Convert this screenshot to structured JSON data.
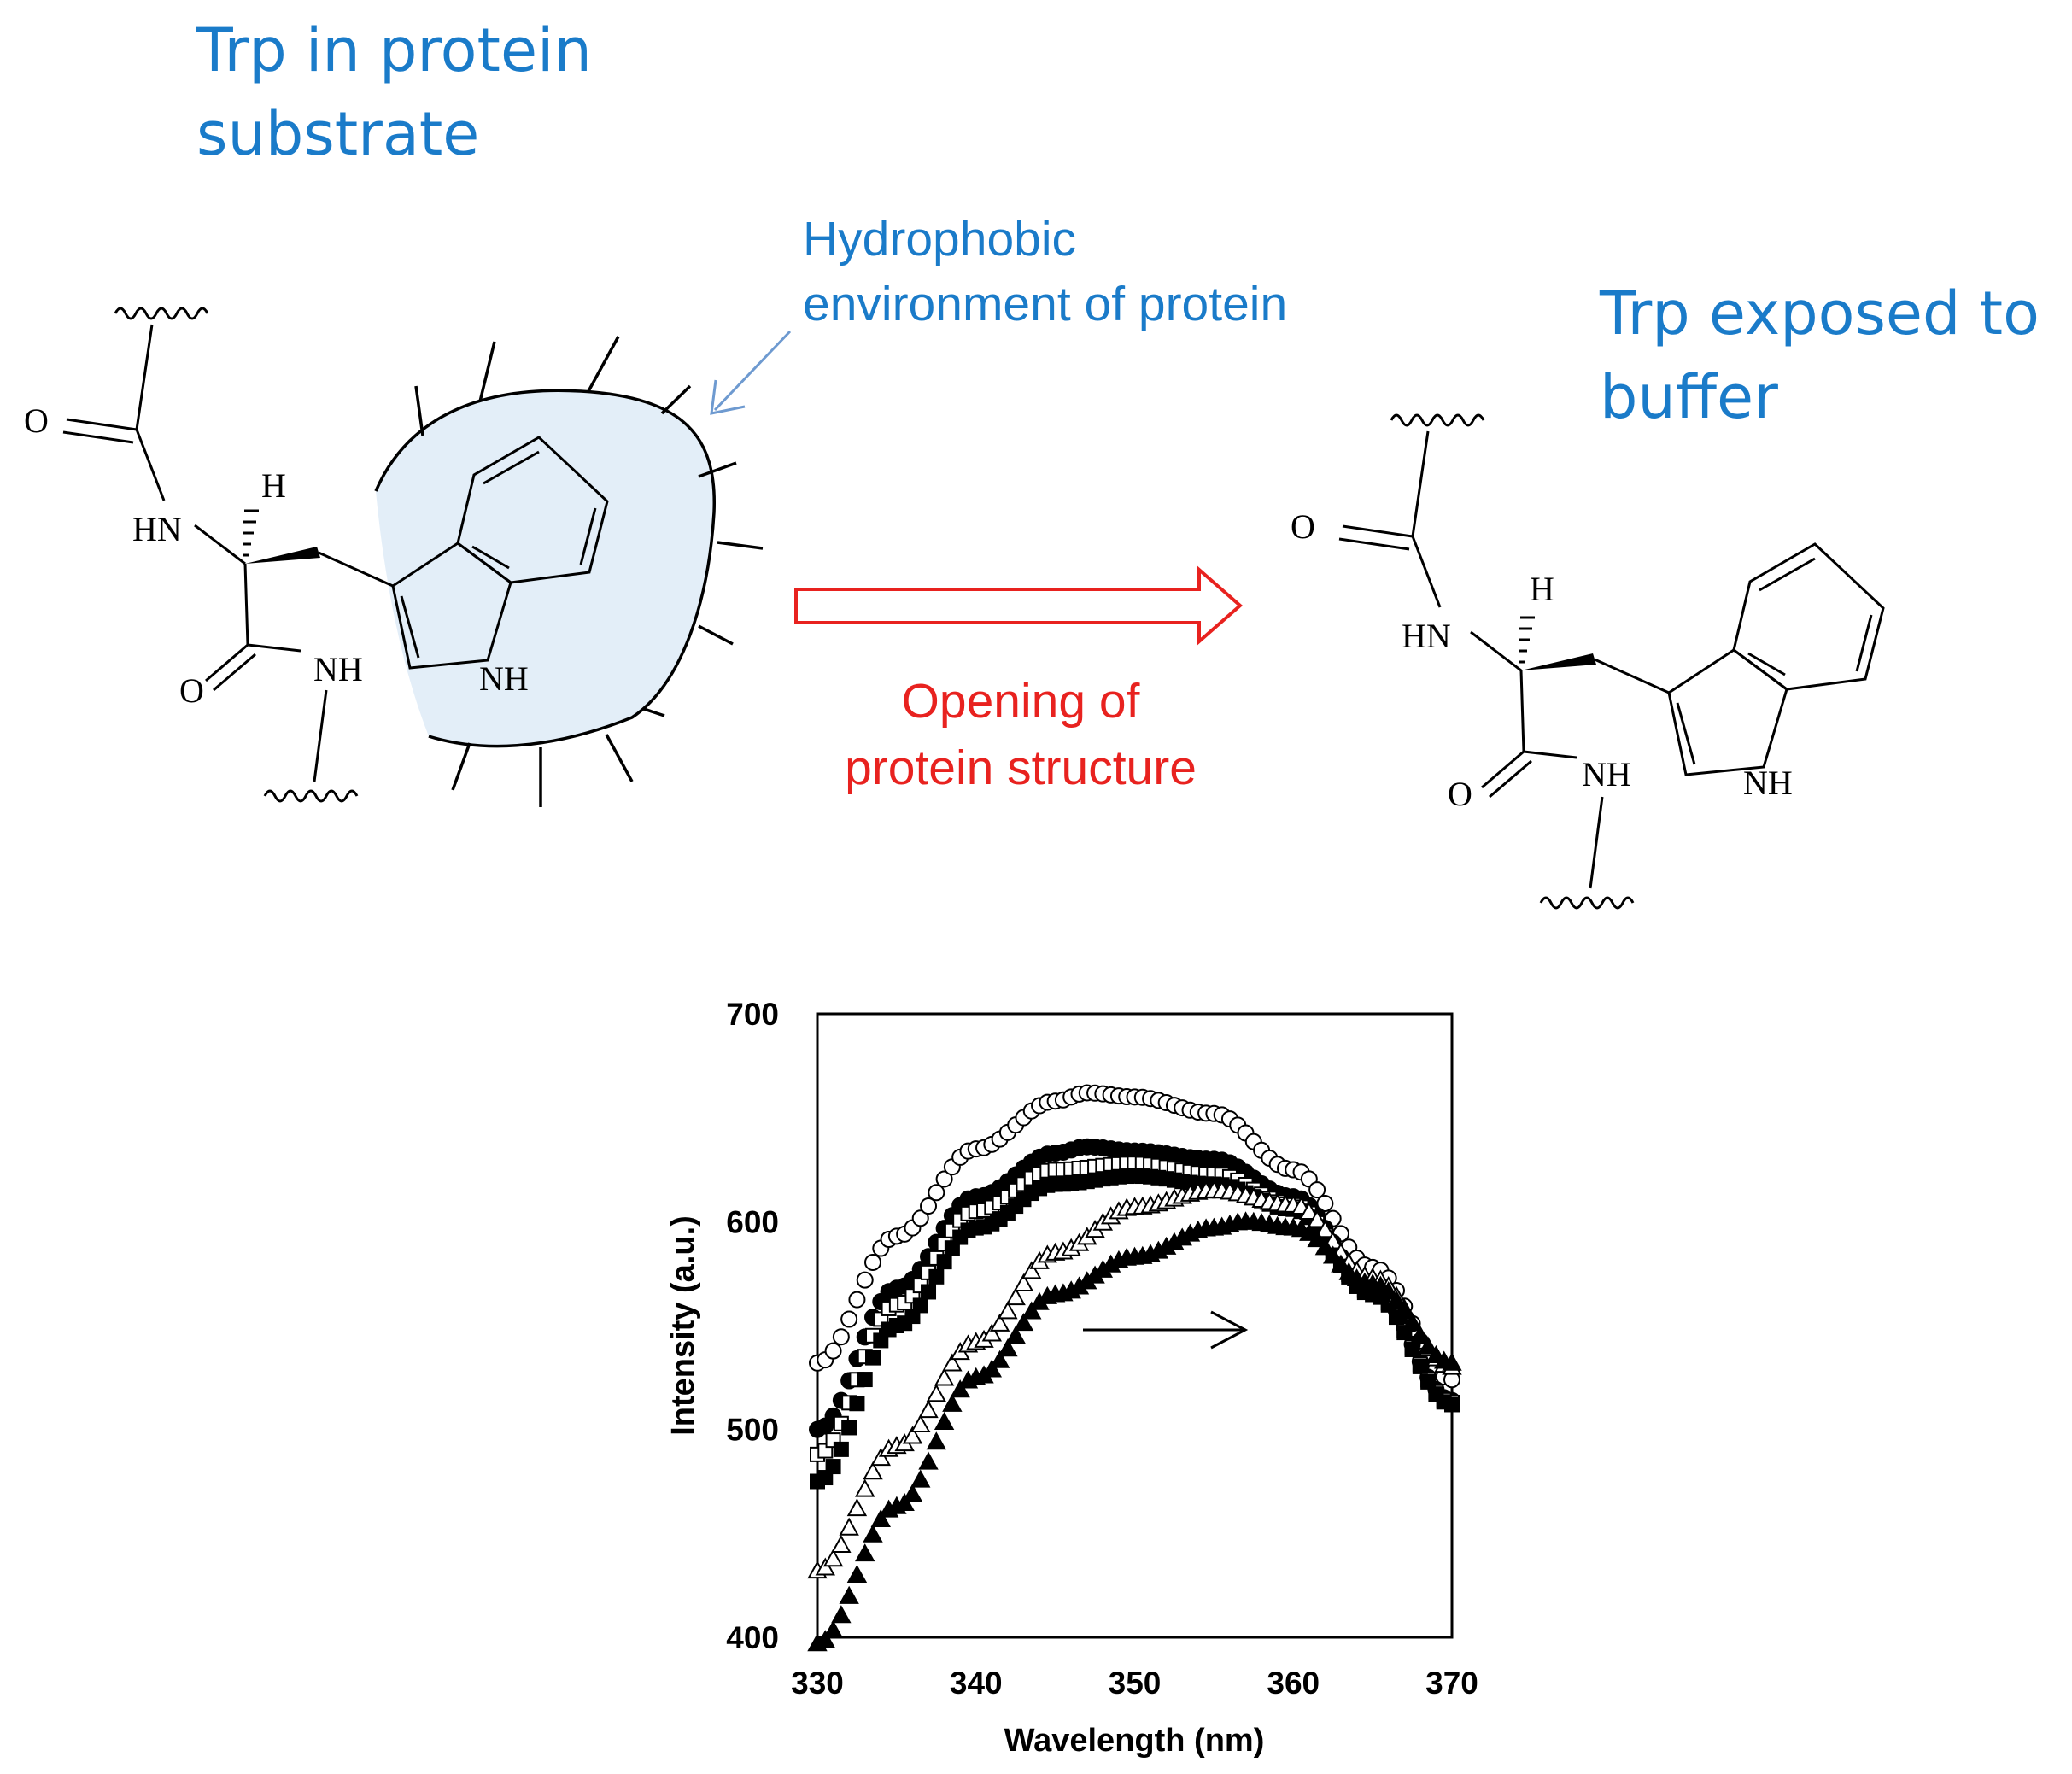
{
  "labels": {
    "trp_in_protein_line1": "Trp in protein",
    "trp_in_protein_line2": "substrate",
    "hydrophobic_line1": "Hydrophobic",
    "hydrophobic_line2": "environment of protein",
    "trp_exposed_line1": "Trp exposed to",
    "trp_exposed_line2": "buffer",
    "opening_line1": "Opening of",
    "opening_line2": "protein structure"
  },
  "atoms": {
    "O": "O",
    "HN": "HN",
    "H": "H",
    "NH": "NH"
  },
  "colors": {
    "blue_text": "#1a7bc9",
    "red": "#e8221f",
    "hydrophobic_fill": "#e3eef8",
    "pointer_arrow": "#6e9ad0"
  },
  "chart_data": {
    "type": "scatter",
    "xlabel": "Wavelength (nm)",
    "ylabel": "Intensity (a.u.)",
    "xlim": [
      330,
      370
    ],
    "ylim": [
      400,
      700
    ],
    "xticks": [
      "330",
      "340",
      "350",
      "360",
      "370"
    ],
    "yticks": [
      "400",
      "500",
      "600",
      "700"
    ],
    "grid": false,
    "legend": "none",
    "series": [
      {
        "marker": "open-circle",
        "x": [
          330,
          335,
          340,
          345,
          347,
          350,
          355,
          360,
          365,
          370
        ],
        "values": [
          532,
          593,
          635,
          658,
          662,
          660,
          652,
          625,
          578,
          524
        ]
      },
      {
        "marker": "filled-circle",
        "x": [
          330,
          335,
          340,
          345,
          347,
          350,
          355,
          360,
          365,
          370
        ],
        "values": [
          500,
          568,
          612,
          633,
          636,
          634,
          630,
          612,
          568,
          514
        ]
      },
      {
        "marker": "open-square",
        "x": [
          330,
          335,
          340,
          345,
          350,
          355,
          360,
          365,
          370
        ],
        "values": [
          488,
          560,
          605,
          625,
          628,
          623,
          608,
          566,
          513
        ]
      },
      {
        "marker": "filled-square",
        "x": [
          330,
          335,
          340,
          345,
          350,
          355,
          360,
          365,
          370
        ],
        "values": [
          475,
          550,
          597,
          618,
          622,
          618,
          606,
          565,
          512
        ]
      },
      {
        "marker": "open-triangle",
        "x": [
          330,
          335,
          340,
          345,
          350,
          355,
          360,
          365,
          370
        ],
        "values": [
          432,
          492,
          542,
          585,
          607,
          615,
          608,
          573,
          530
        ]
      },
      {
        "marker": "filled-triangle",
        "x": [
          330,
          335,
          340,
          345,
          350,
          355,
          357,
          360,
          365,
          370
        ],
        "values": [
          397,
          463,
          525,
          565,
          583,
          597,
          600,
          597,
          570,
          532
        ]
      }
    ],
    "annotation": "arrow pointing to longer wavelength (red shift)"
  }
}
